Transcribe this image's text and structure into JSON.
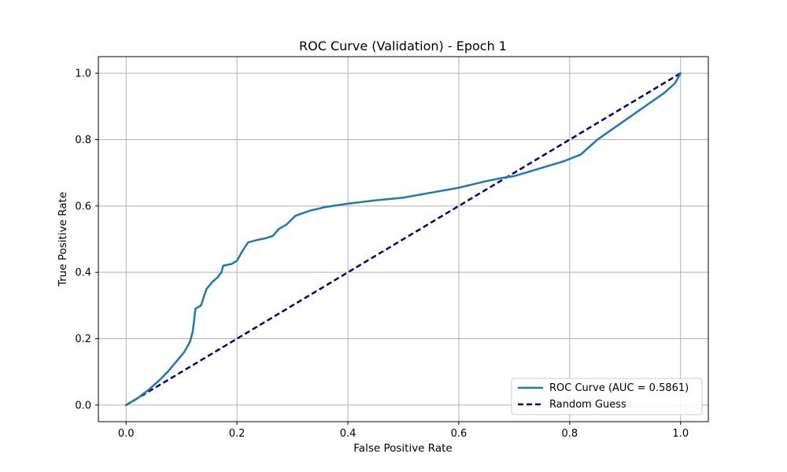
{
  "chart_data": {
    "type": "line",
    "title": "ROC Curve (Validation) - Epoch 1",
    "xlabel": "False Positive Rate",
    "ylabel": "True Positive Rate",
    "xlim": [
      -0.05,
      1.05
    ],
    "ylim": [
      -0.05,
      1.05
    ],
    "xticks": [
      0.0,
      0.2,
      0.4,
      0.6,
      0.8,
      1.0
    ],
    "yticks": [
      0.0,
      0.2,
      0.4,
      0.6,
      0.8,
      1.0
    ],
    "tick_labels_x": [
      "0.0",
      "0.2",
      "0.4",
      "0.6",
      "0.8",
      "1.0"
    ],
    "tick_labels_y": [
      "0.0",
      "0.2",
      "0.4",
      "0.6",
      "0.8",
      "1.0"
    ],
    "grid": true,
    "legend_position": "bottom-right",
    "series": [
      {
        "name": "ROC Curve (AUC = 0.5861)",
        "color": "#1f77b4",
        "style": "solid",
        "points": [
          [
            0.0,
            0.0
          ],
          [
            0.02,
            0.02
          ],
          [
            0.04,
            0.045
          ],
          [
            0.06,
            0.075
          ],
          [
            0.075,
            0.1
          ],
          [
            0.09,
            0.13
          ],
          [
            0.105,
            0.16
          ],
          [
            0.115,
            0.19
          ],
          [
            0.12,
            0.22
          ],
          [
            0.123,
            0.26
          ],
          [
            0.125,
            0.29
          ],
          [
            0.135,
            0.3
          ],
          [
            0.145,
            0.35
          ],
          [
            0.155,
            0.37
          ],
          [
            0.165,
            0.385
          ],
          [
            0.172,
            0.4
          ],
          [
            0.175,
            0.42
          ],
          [
            0.19,
            0.425
          ],
          [
            0.2,
            0.435
          ],
          [
            0.21,
            0.465
          ],
          [
            0.22,
            0.49
          ],
          [
            0.235,
            0.497
          ],
          [
            0.25,
            0.502
          ],
          [
            0.265,
            0.51
          ],
          [
            0.275,
            0.53
          ],
          [
            0.29,
            0.545
          ],
          [
            0.305,
            0.57
          ],
          [
            0.33,
            0.585
          ],
          [
            0.36,
            0.597
          ],
          [
            0.4,
            0.607
          ],
          [
            0.45,
            0.617
          ],
          [
            0.5,
            0.625
          ],
          [
            0.55,
            0.64
          ],
          [
            0.6,
            0.655
          ],
          [
            0.65,
            0.675
          ],
          [
            0.68,
            0.685
          ],
          [
            0.7,
            0.69
          ],
          [
            0.73,
            0.705
          ],
          [
            0.76,
            0.72
          ],
          [
            0.79,
            0.735
          ],
          [
            0.82,
            0.755
          ],
          [
            0.85,
            0.8
          ],
          [
            0.88,
            0.835
          ],
          [
            0.91,
            0.87
          ],
          [
            0.94,
            0.905
          ],
          [
            0.97,
            0.94
          ],
          [
            0.99,
            0.97
          ],
          [
            1.0,
            1.0
          ]
        ]
      },
      {
        "name": "Random Guess",
        "color": "#000080",
        "style": "dashed",
        "points": [
          [
            0.0,
            0.0
          ],
          [
            1.0,
            1.0
          ]
        ]
      }
    ]
  }
}
